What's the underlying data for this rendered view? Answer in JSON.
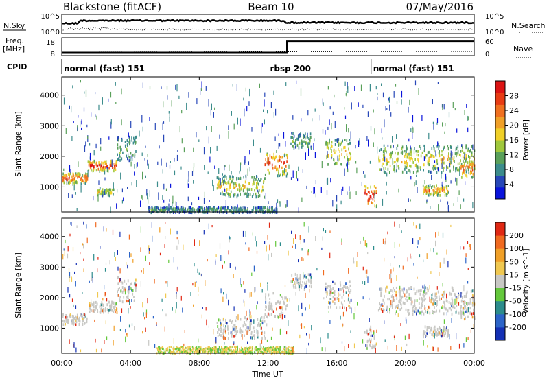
{
  "header": {
    "station": "Blackstone (fitACF)",
    "beam": "Beam 10",
    "date": "07/May/2016"
  },
  "summary_panel": {
    "left_label": "N.Sky",
    "right_label": "N.Search",
    "left_ticks": [
      "10^5",
      "10^0"
    ],
    "right_ticks": [
      "10^5",
      "10^0"
    ]
  },
  "freq_panel": {
    "left_label_1": "Freq.",
    "left_label_2": "[MHz]",
    "left_ticks": [
      "18",
      "8"
    ],
    "right_label": "Nave",
    "right_ticks": [
      "60",
      "0"
    ],
    "freq_segments": [
      {
        "t_start": 0,
        "t_end": 13.1,
        "mhz": 10.5
      },
      {
        "t_start": 13.1,
        "t_end": 24,
        "mhz": 16.8
      }
    ]
  },
  "cpid": {
    "label": "CPID",
    "segments": [
      {
        "t_start": 0,
        "name": "normal (fast) 151"
      },
      {
        "t_start": 12.0,
        "name": "rbsp 200"
      },
      {
        "t_start": 18.0,
        "name": "normal (fast) 151"
      }
    ]
  },
  "chart_data": [
    {
      "type": "heatmap",
      "name": "power",
      "ylabel": "Slant Range [km]",
      "xlabel": "",
      "ylim": [
        180,
        4600
      ],
      "yticks": [
        "1000",
        "2000",
        "3000",
        "4000"
      ],
      "ytick_values": [
        1000,
        2000,
        3000,
        4000
      ],
      "xlim": [
        0,
        24
      ],
      "colorbar": {
        "label": "Power [dB]",
        "ticks": [
          "4",
          "8",
          "12",
          "16",
          "20",
          "24",
          "28"
        ],
        "tick_values": [
          4,
          8,
          12,
          16,
          20,
          24,
          28
        ],
        "range": [
          0,
          32
        ],
        "colors": [
          "#0a14dc",
          "#2848b8",
          "#3c8c8c",
          "#5aa05a",
          "#a0c83c",
          "#f0d028",
          "#f0a028",
          "#f07020",
          "#e83c14",
          "#dc1414"
        ]
      },
      "bands": [
        {
          "t_start": 0.0,
          "t_end": 1.5,
          "r_start": 1150,
          "r_end": 1500,
          "level": 0.7
        },
        {
          "t_start": 1.5,
          "t_end": 3.2,
          "r_start": 1550,
          "r_end": 1900,
          "level": 0.75
        },
        {
          "t_start": 3.2,
          "t_end": 4.3,
          "r_start": 1900,
          "r_end": 2700,
          "level": 0.3
        },
        {
          "t_start": 2.0,
          "t_end": 3.0,
          "r_start": 750,
          "r_end": 1000,
          "level": 0.4
        },
        {
          "t_start": 9.0,
          "t_end": 11.8,
          "r_start": 700,
          "r_end": 1400,
          "level": 0.45
        },
        {
          "t_start": 11.8,
          "t_end": 13.1,
          "r_start": 1400,
          "r_end": 2200,
          "level": 0.7
        },
        {
          "t_start": 13.3,
          "t_end": 14.5,
          "r_start": 2300,
          "r_end": 2800,
          "level": 0.3
        },
        {
          "t_start": 15.3,
          "t_end": 16.8,
          "r_start": 1700,
          "r_end": 2600,
          "level": 0.45
        },
        {
          "t_start": 17.6,
          "t_end": 18.3,
          "r_start": 400,
          "r_end": 1100,
          "level": 0.85
        },
        {
          "t_start": 18.4,
          "t_end": 24.0,
          "r_start": 1500,
          "r_end": 2400,
          "level": 0.45
        },
        {
          "t_start": 21.0,
          "t_end": 22.5,
          "r_start": 750,
          "r_end": 1100,
          "level": 0.6
        },
        {
          "t_start": 23.2,
          "t_end": 24.0,
          "r_start": 1350,
          "r_end": 1900,
          "level": 0.7
        },
        {
          "t_start": 5.0,
          "t_end": 12.5,
          "r_start": 200,
          "r_end": 380,
          "level": 0.25
        }
      ]
    },
    {
      "type": "heatmap",
      "name": "velocity",
      "ylabel": "Slant Range [km]",
      "xlabel": "Time UT",
      "ylim": [
        180,
        4600
      ],
      "yticks": [
        "1000",
        "2000",
        "3000",
        "4000"
      ],
      "ytick_values": [
        1000,
        2000,
        3000,
        4000
      ],
      "xlim": [
        0,
        24
      ],
      "xticks": [
        "00:00",
        "04:00",
        "08:00",
        "12:00",
        "16:00",
        "20:00",
        "00:00"
      ],
      "xtick_values": [
        0,
        4,
        8,
        12,
        16,
        20,
        24
      ],
      "colorbar": {
        "label": "Velocity [m s^-1]",
        "ticks": [
          "200",
          "100",
          "50",
          "15",
          "-15",
          "-50",
          "-100",
          "-200"
        ],
        "colors": [
          "#1430b4",
          "#2c64c8",
          "#2c8c8c",
          "#64c83c",
          "#c8c8c4",
          "#f0c850",
          "#f0a028",
          "#f06a20",
          "#e02814"
        ]
      },
      "gray_bands": [
        {
          "t_start": 0.0,
          "t_end": 1.5,
          "r_start": 1150,
          "r_end": 1500
        },
        {
          "t_start": 1.5,
          "t_end": 3.2,
          "r_start": 1550,
          "r_end": 1900
        },
        {
          "t_start": 3.2,
          "t_end": 4.3,
          "r_start": 1900,
          "r_end": 2700
        },
        {
          "t_start": 9.0,
          "t_end": 11.8,
          "r_start": 700,
          "r_end": 1400
        },
        {
          "t_start": 11.8,
          "t_end": 13.1,
          "r_start": 1400,
          "r_end": 2200
        },
        {
          "t_start": 13.3,
          "t_end": 14.5,
          "r_start": 2300,
          "r_end": 2800
        },
        {
          "t_start": 15.3,
          "t_end": 16.8,
          "r_start": 1700,
          "r_end": 2600
        },
        {
          "t_start": 17.6,
          "t_end": 18.3,
          "r_start": 400,
          "r_end": 1100
        },
        {
          "t_start": 18.4,
          "t_end": 24.0,
          "r_start": 1500,
          "r_end": 2400
        },
        {
          "t_start": 21.0,
          "t_end": 22.5,
          "r_start": 750,
          "r_end": 1100
        },
        {
          "t_start": 23.2,
          "t_end": 24.0,
          "r_start": 1350,
          "r_end": 1900
        }
      ],
      "ground_band": {
        "t_start": 5.5,
        "t_end": 13.5,
        "r_start": 200,
        "r_end": 420
      }
    }
  ]
}
